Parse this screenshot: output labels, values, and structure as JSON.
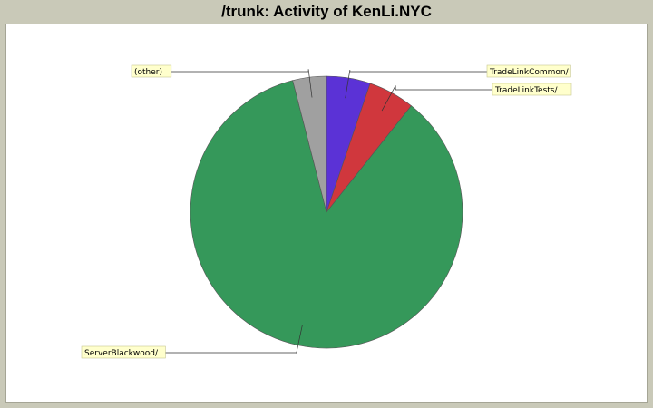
{
  "title": "/trunk: Activity of KenLi.NYC",
  "chart_data": {
    "type": "pie",
    "title": "/trunk: Activity of KenLi.NYC",
    "slices": [
      {
        "label": "TradeLinkCommon/",
        "value": 5.2,
        "color": "#5b32d6"
      },
      {
        "label": "TradeLinkTests/",
        "value": 5.5,
        "color": "#d0373d"
      },
      {
        "label": "ServerBlackwood/",
        "value": 85.3,
        "color": "#35985a"
      },
      {
        "label": "(other)",
        "value": 4.0,
        "color": "#a0a0a0"
      }
    ],
    "label_background": "#ffffcc"
  }
}
